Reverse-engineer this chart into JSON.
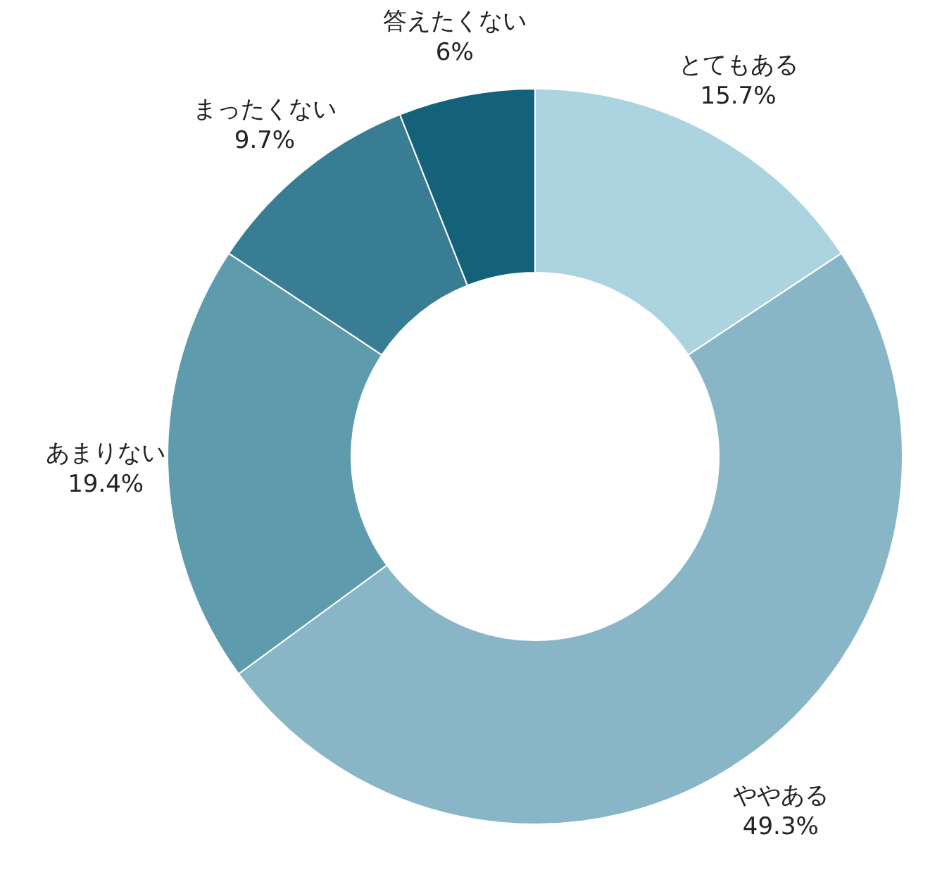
{
  "chart_data": {
    "type": "donut",
    "categories": [
      "とてもある",
      "ややある",
      "あまりない",
      "まったくない",
      "答えたくない"
    ],
    "values": [
      15.7,
      49.3,
      19.4,
      9.7,
      6
    ],
    "value_labels": [
      "15.7%",
      "49.3%",
      "19.4%",
      "9.7%",
      "6%"
    ],
    "colors": [
      "#acd4e0",
      "#88b6c6",
      "#5e9bad",
      "#387d93",
      "#13627a"
    ]
  }
}
